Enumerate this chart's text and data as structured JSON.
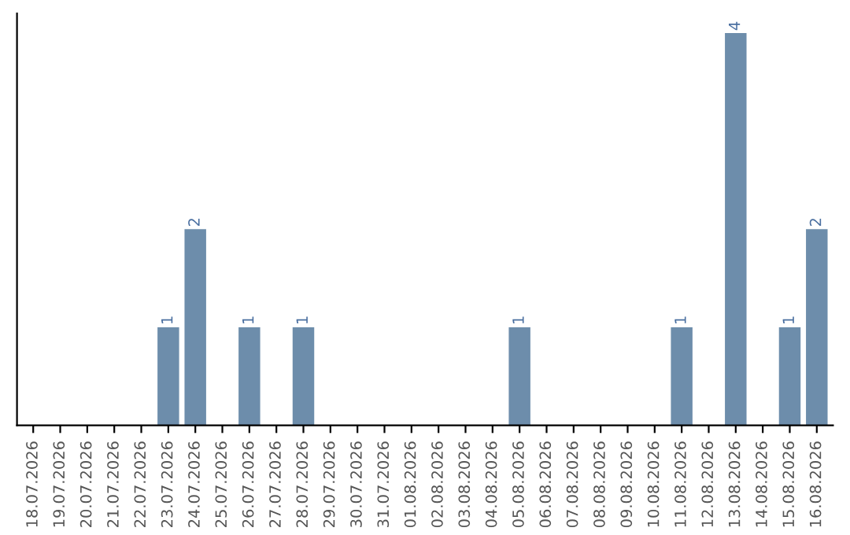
{
  "chart_data": {
    "type": "bar",
    "categories": [
      "18.07.2026",
      "19.07.2026",
      "20.07.2026",
      "21.07.2026",
      "22.07.2026",
      "23.07.2026",
      "24.07.2026",
      "25.07.2026",
      "26.07.2026",
      "27.07.2026",
      "28.07.2026",
      "29.07.2026",
      "30.07.2026",
      "31.07.2026",
      "01.08.2026",
      "02.08.2026",
      "03.08.2026",
      "04.08.2026",
      "05.08.2026",
      "06.08.2026",
      "07.08.2026",
      "08.08.2026",
      "09.08.2026",
      "10.08.2026",
      "11.08.2026",
      "12.08.2026",
      "13.08.2026",
      "14.08.2026",
      "15.08.2026",
      "16.08.2026"
    ],
    "values": [
      0,
      0,
      0,
      0,
      0,
      1,
      2,
      0,
      1,
      0,
      1,
      0,
      0,
      0,
      0,
      0,
      0,
      0,
      1,
      0,
      0,
      0,
      0,
      0,
      1,
      0,
      4,
      0,
      1,
      2
    ],
    "value_labels": [
      null,
      null,
      null,
      null,
      null,
      "1",
      "2",
      null,
      "1",
      null,
      "1",
      null,
      null,
      null,
      null,
      null,
      null,
      null,
      "1",
      null,
      null,
      null,
      null,
      null,
      "1",
      null,
      "4",
      null,
      "1",
      "2"
    ],
    "color": "#6d8dab",
    "grid": false,
    "legend": false,
    "tick_labels": "x"
  }
}
